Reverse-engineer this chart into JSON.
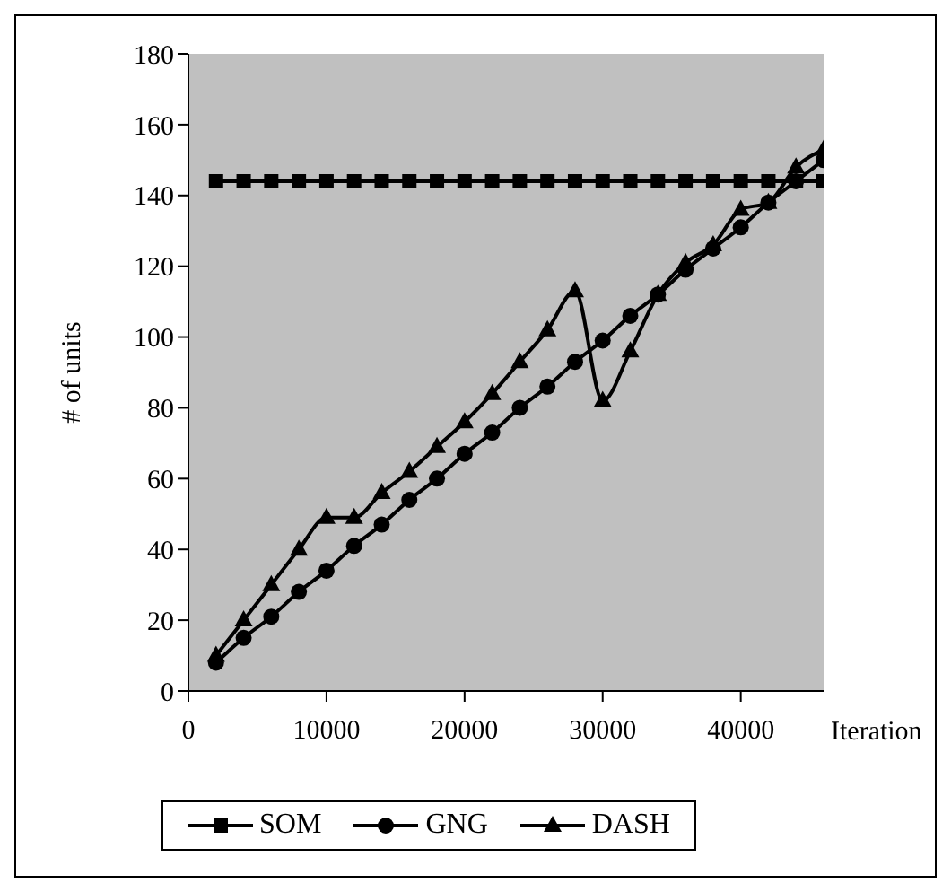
{
  "chart_data": {
    "type": "line",
    "xlabel": "Iteration",
    "ylabel": "# of units",
    "x": [
      2000,
      4000,
      6000,
      8000,
      10000,
      12000,
      14000,
      16000,
      18000,
      20000,
      22000,
      24000,
      26000,
      28000,
      30000,
      32000,
      34000,
      36000,
      38000,
      40000,
      42000,
      44000,
      46000
    ],
    "series": [
      {
        "name": "SOM",
        "color": "#000000",
        "marker": "square",
        "values": [
          144,
          144,
          144,
          144,
          144,
          144,
          144,
          144,
          144,
          144,
          144,
          144,
          144,
          144,
          144,
          144,
          144,
          144,
          144,
          144,
          144,
          144,
          144
        ]
      },
      {
        "name": "GNG",
        "color": "#000000",
        "marker": "circle",
        "values": [
          8,
          15,
          21,
          28,
          34,
          41,
          47,
          54,
          60,
          67,
          73,
          80,
          86,
          93,
          99,
          106,
          112,
          119,
          125,
          131,
          138,
          144,
          150
        ]
      },
      {
        "name": "DASH",
        "color": "#000000",
        "marker": "triangle",
        "values": [
          10,
          20,
          30,
          40,
          49,
          49,
          56,
          62,
          69,
          76,
          84,
          93,
          102,
          113,
          82,
          96,
          112,
          121,
          126,
          136,
          138,
          148,
          153
        ]
      }
    ],
    "xlim": [
      0,
      46000
    ],
    "xticks": [
      0,
      10000,
      20000,
      30000,
      40000
    ],
    "ylim": [
      0,
      180
    ],
    "yticks": [
      0,
      20,
      40,
      60,
      80,
      100,
      120,
      140,
      160,
      180
    ],
    "grid": false,
    "legend": "bottom",
    "line_style": "solid"
  }
}
